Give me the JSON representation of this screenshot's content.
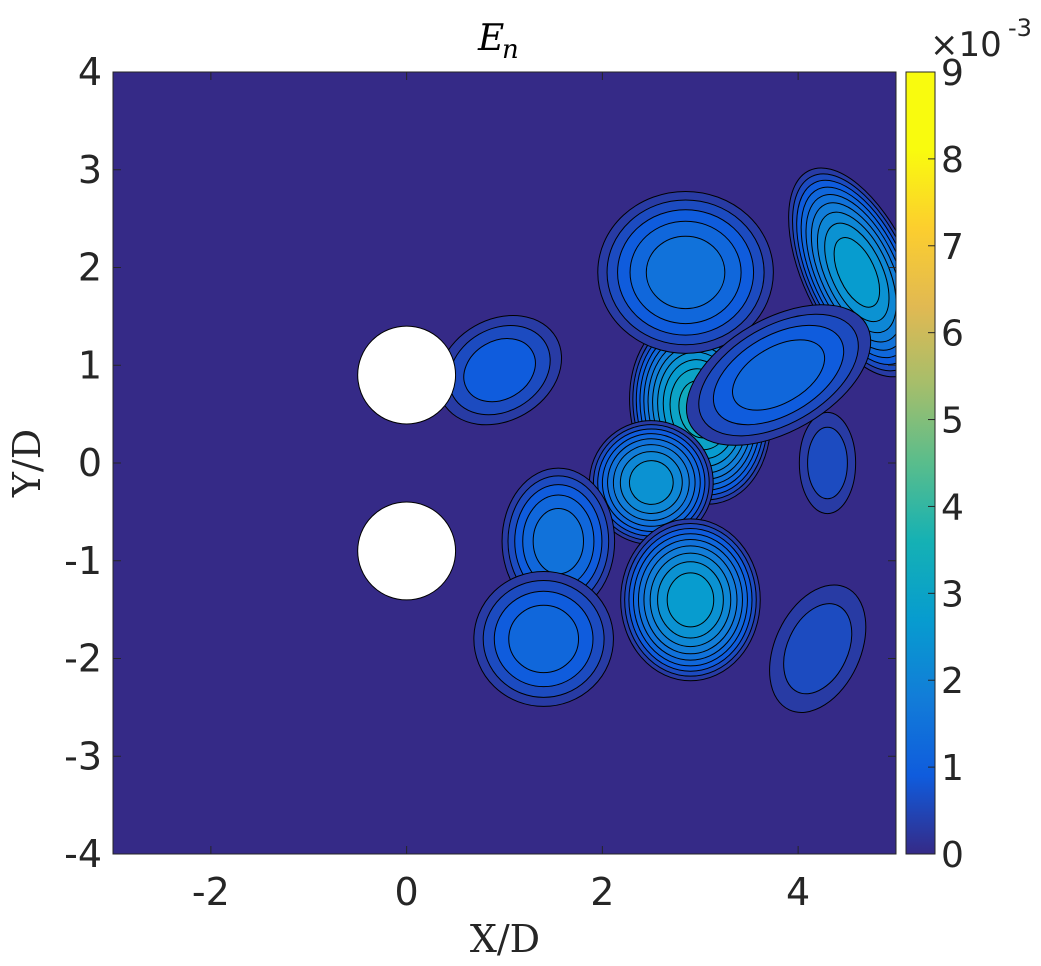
{
  "chart_data": {
    "type": "contour",
    "title_base": "E",
    "title_sub": "n",
    "xlabel": "X/D",
    "ylabel": "Y/D",
    "xlim": [
      -3,
      5
    ],
    "ylim": [
      -4,
      4
    ],
    "xticks": [
      "-2",
      "0",
      "2",
      "4"
    ],
    "xtick_values": [
      -2,
      0,
      2,
      4
    ],
    "yticks": [
      "-4",
      "-3",
      "-2",
      "-1",
      "0",
      "1",
      "2",
      "3",
      "4"
    ],
    "ytick_values": [
      -4,
      -3,
      -2,
      -1,
      0,
      1,
      2,
      3,
      4
    ],
    "colorbar": {
      "ticks": [
        "0",
        "1",
        "2",
        "3",
        "4",
        "5",
        "6",
        "7",
        "8",
        "9"
      ],
      "tick_values": [
        0,
        1,
        2,
        3,
        4,
        5,
        6,
        7,
        8,
        9
      ],
      "range": [
        0,
        0.009
      ],
      "exponent_prefix": "×10",
      "exponent_power": "-3",
      "colormap": "parula"
    },
    "cylinders": [
      {
        "x": 0,
        "y": 0.9,
        "diameter": 1
      },
      {
        "x": 0,
        "y": -0.9,
        "diameter": 1
      }
    ],
    "peaks": [
      {
        "x": 3.0,
        "y": 0.55,
        "value": 0.0033
      },
      {
        "x": 2.5,
        "y": -0.2,
        "value": 0.0026
      },
      {
        "x": 4.6,
        "y": 1.95,
        "value": 0.0029
      },
      {
        "x": 2.9,
        "y": -1.4,
        "value": 0.0027
      },
      {
        "x": 2.85,
        "y": 1.95,
        "value": 0.0016
      },
      {
        "x": 1.55,
        "y": -0.8,
        "value": 0.0017
      },
      {
        "x": 1.4,
        "y": -1.8,
        "value": 0.0014
      },
      {
        "x": 0.95,
        "y": 0.95,
        "value": 0.0009
      },
      {
        "x": 4.2,
        "y": -1.9,
        "value": 0.0006
      },
      {
        "x": 4.3,
        "y": 0.0,
        "value": 0.0006
      },
      {
        "x": 3.8,
        "y": 0.9,
        "value": 0.0014
      }
    ],
    "background_color": "#352a87"
  }
}
